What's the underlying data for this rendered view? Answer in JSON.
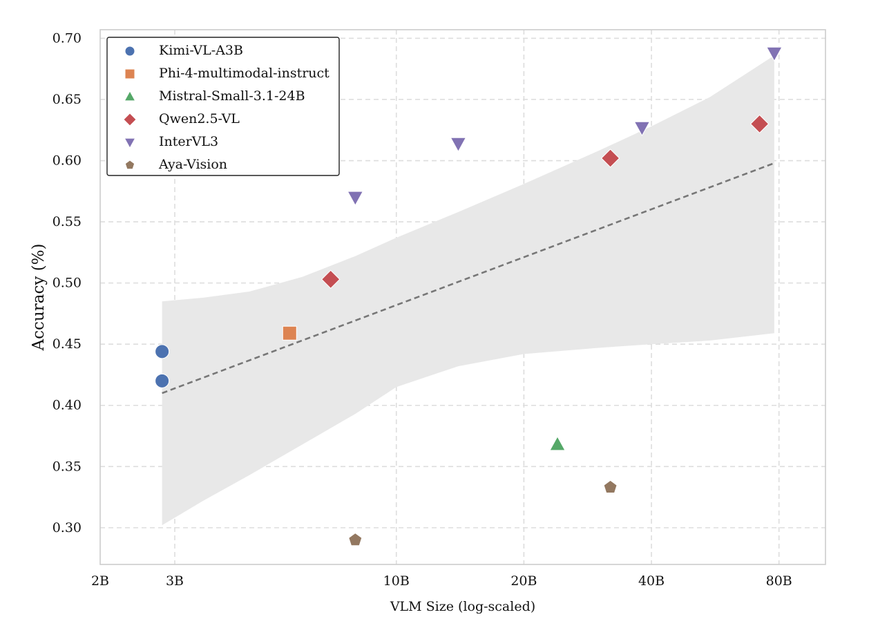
{
  "chart_data": {
    "type": "scatter",
    "title": "",
    "xlabel": "VLM Size (log-scaled)",
    "ylabel": "Accuracy (%)",
    "xscale": "log",
    "xlim": [
      2,
      103
    ],
    "ylim": [
      0.27,
      0.707
    ],
    "grid": true,
    "legend_position": "top-left",
    "x_ticks": [
      {
        "value": 2,
        "label": "2B"
      },
      {
        "value": 3,
        "label": "3B"
      },
      {
        "value": 10,
        "label": "10B"
      },
      {
        "value": 20,
        "label": "20B"
      },
      {
        "value": 40,
        "label": "40B"
      },
      {
        "value": 80,
        "label": "80B"
      }
    ],
    "y_ticks": [
      {
        "value": 0.3,
        "label": "0.30"
      },
      {
        "value": 0.35,
        "label": "0.35"
      },
      {
        "value": 0.4,
        "label": "0.40"
      },
      {
        "value": 0.45,
        "label": "0.45"
      },
      {
        "value": 0.5,
        "label": "0.50"
      },
      {
        "value": 0.55,
        "label": "0.55"
      },
      {
        "value": 0.6,
        "label": "0.60"
      },
      {
        "value": 0.65,
        "label": "0.65"
      },
      {
        "value": 0.7,
        "label": "0.70"
      }
    ],
    "series": [
      {
        "name": "Kimi-VL-A3B",
        "marker": "circle",
        "color": "#4c72b0",
        "points": [
          {
            "x": 2.8,
            "y": 0.444
          },
          {
            "x": 2.8,
            "y": 0.42
          }
        ]
      },
      {
        "name": "Phi-4-multimodal-instruct",
        "marker": "square",
        "color": "#dd8452",
        "points": [
          {
            "x": 5.6,
            "y": 0.459
          }
        ]
      },
      {
        "name": "Mistral-Small-3.1-24B",
        "marker": "triangle-up",
        "color": "#55a868",
        "points": [
          {
            "x": 24,
            "y": 0.368
          }
        ]
      },
      {
        "name": "Qwen2.5-VL",
        "marker": "diamond",
        "color": "#c44e52",
        "points": [
          {
            "x": 7,
            "y": 0.503
          },
          {
            "x": 32,
            "y": 0.602
          },
          {
            "x": 72,
            "y": 0.63
          }
        ]
      },
      {
        "name": "InterVL3",
        "marker": "triangle-down",
        "color": "#8172b3",
        "points": [
          {
            "x": 8,
            "y": 0.57
          },
          {
            "x": 14,
            "y": 0.614
          },
          {
            "x": 38,
            "y": 0.627
          },
          {
            "x": 78,
            "y": 0.688
          }
        ]
      },
      {
        "name": "Aya-Vision",
        "marker": "pentagon",
        "color": "#937860",
        "points": [
          {
            "x": 8,
            "y": 0.29
          },
          {
            "x": 32,
            "y": 0.333
          }
        ]
      }
    ],
    "trend_line": {
      "style": "dashed",
      "color": "#777777",
      "from": {
        "x": 2.8,
        "y": 0.41
      },
      "to": {
        "x": 78,
        "y": 0.598
      }
    },
    "confidence_band": {
      "color": "#e8e8e8",
      "upper": [
        {
          "x": 2.8,
          "y": 0.485
        },
        {
          "x": 3.5,
          "y": 0.488
        },
        {
          "x": 4.5,
          "y": 0.493
        },
        {
          "x": 6,
          "y": 0.505
        },
        {
          "x": 8,
          "y": 0.522
        },
        {
          "x": 10,
          "y": 0.537
        },
        {
          "x": 14,
          "y": 0.558
        },
        {
          "x": 20,
          "y": 0.581
        },
        {
          "x": 30,
          "y": 0.608
        },
        {
          "x": 40,
          "y": 0.628
        },
        {
          "x": 55,
          "y": 0.652
        },
        {
          "x": 78,
          "y": 0.686
        }
      ],
      "lower": [
        {
          "x": 2.8,
          "y": 0.302
        },
        {
          "x": 3.5,
          "y": 0.322
        },
        {
          "x": 4.5,
          "y": 0.343
        },
        {
          "x": 6,
          "y": 0.368
        },
        {
          "x": 8,
          "y": 0.393
        },
        {
          "x": 10,
          "y": 0.415
        },
        {
          "x": 14,
          "y": 0.432
        },
        {
          "x": 20,
          "y": 0.442
        },
        {
          "x": 30,
          "y": 0.447
        },
        {
          "x": 40,
          "y": 0.45
        },
        {
          "x": 55,
          "y": 0.453
        },
        {
          "x": 78,
          "y": 0.459
        }
      ]
    }
  }
}
